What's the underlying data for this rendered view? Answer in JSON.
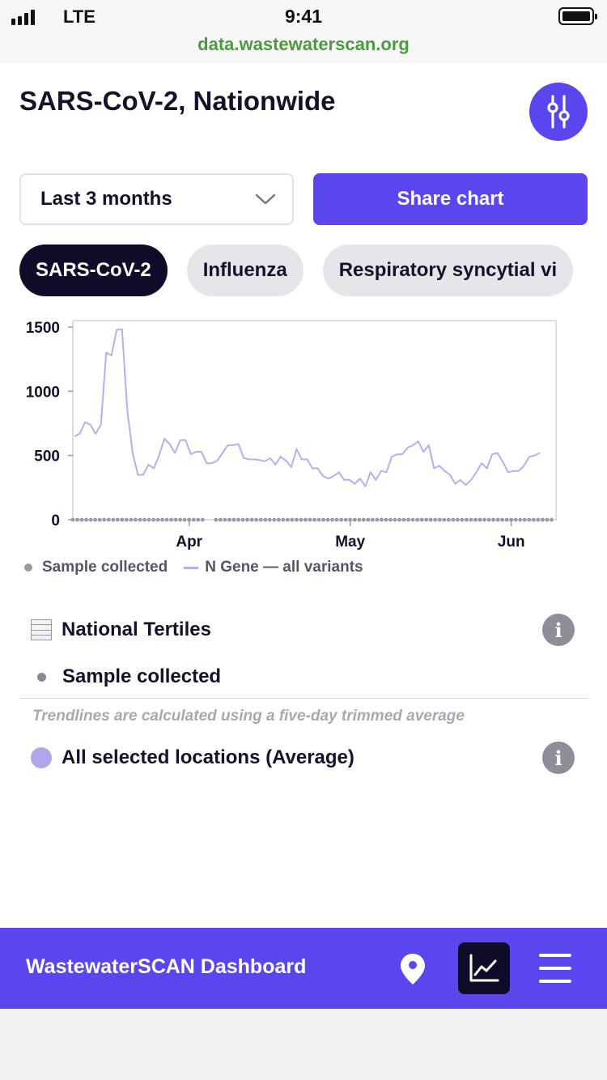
{
  "status_bar": {
    "carrier": "LTE",
    "time": "9:41",
    "url": "data.wastewaterscan.org"
  },
  "header": {
    "title": "SARS-CoV-2, Nationwide",
    "filter_icon": "sliders-icon"
  },
  "controls": {
    "range_value": "Last 3 months",
    "share_label": "Share chart"
  },
  "tabs": [
    {
      "label": "SARS-CoV-2",
      "active": true
    },
    {
      "label": "Influenza",
      "active": false
    },
    {
      "label": "Respiratory syncytial vi",
      "active": false
    }
  ],
  "chart_data": {
    "type": "line",
    "title": "",
    "xlabel": "",
    "ylabel": "",
    "ylim": [
      0,
      1550
    ],
    "yticks": [
      0,
      500,
      1000,
      1500
    ],
    "ytick_labels": [
      "0",
      "500",
      "1000",
      "1500"
    ],
    "xticks": [
      {
        "label": "Apr",
        "day": 26
      },
      {
        "label": "May",
        "day": 62
      },
      {
        "label": "Jun",
        "day": 98
      }
    ],
    "x_range_days": [
      0,
      108
    ],
    "series": [
      {
        "name": "N Gene — all variants",
        "color": "#b6aef0",
        "values": [
          650,
          670,
          760,
          740,
          670,
          740,
          1300,
          1280,
          1480,
          1480,
          850,
          520,
          350,
          350,
          430,
          400,
          500,
          630,
          590,
          520,
          620,
          620,
          510,
          530,
          530,
          440,
          440,
          460,
          520,
          580,
          580,
          590,
          480,
          470,
          470,
          465,
          455,
          480,
          430,
          490,
          460,
          410,
          550,
          470,
          470,
          400,
          400,
          340,
          320,
          340,
          370,
          310,
          310,
          280,
          320,
          260,
          370,
          310,
          380,
          370,
          490,
          510,
          510,
          560,
          580,
          610,
          530,
          580,
          400,
          420,
          380,
          350,
          280,
          310,
          270,
          310,
          370,
          440,
          400,
          510,
          520,
          450,
          370,
          380,
          380,
          420,
          490,
          500,
          520
        ]
      }
    ],
    "sample_collected_day_count": 108,
    "sample_gap_after_day": 30,
    "legend": [
      {
        "label": "Sample collected",
        "marker": "dot"
      },
      {
        "label": "N Gene — all variants",
        "marker": "line"
      }
    ]
  },
  "info": {
    "tertiles_label": "National Tertiles",
    "sample_label": "Sample collected",
    "note": "Trendlines are calculated using a five-day trimmed average",
    "average_label": "All selected locations (Average)",
    "info_glyph": "i"
  },
  "bottom_nav": {
    "title": "WastewaterSCAN Dashboard",
    "icons": [
      "location-pin-icon",
      "line-chart-icon",
      "hamburger-menu-icon"
    ]
  },
  "colors": {
    "accent": "#5a45ee",
    "dark": "#0f0c29",
    "trend": "#b6aef0",
    "url_green": "#4c9a3e"
  }
}
